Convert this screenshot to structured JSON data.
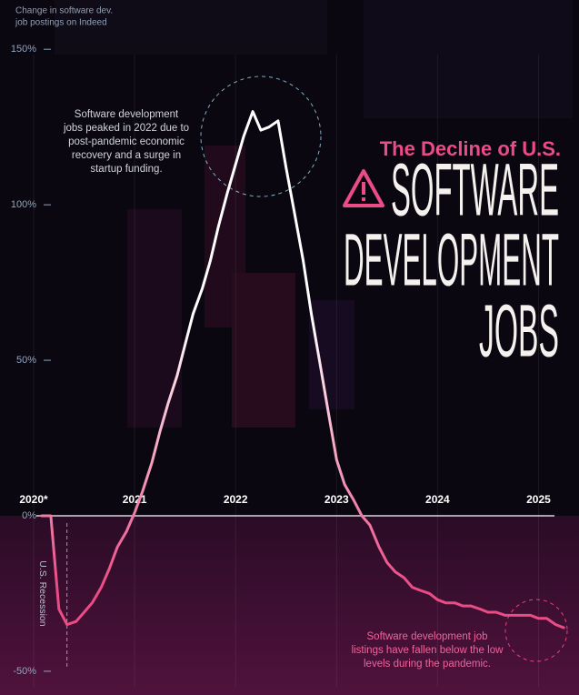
{
  "chart_data": {
    "type": "line",
    "title": "The Decline of U.S.",
    "headline": [
      "SOFTWARE",
      "DEVELOPMENT",
      "JOBS"
    ],
    "y_label": [
      "Change in software dev.",
      "job postings on Indeed"
    ],
    "x": [
      2020.08,
      2020.17,
      2020.25,
      2020.33,
      2020.42,
      2020.5,
      2020.58,
      2020.67,
      2020.75,
      2020.83,
      2020.92,
      2021,
      2021.08,
      2021.17,
      2021.25,
      2021.33,
      2021.42,
      2021.5,
      2021.58,
      2021.67,
      2021.75,
      2021.83,
      2021.92,
      2022,
      2022.08,
      2022.17,
      2022.25,
      2022.33,
      2022.42,
      2022.5,
      2022.58,
      2022.67,
      2022.75,
      2022.83,
      2022.92,
      2023,
      2023.08,
      2023.17,
      2023.25,
      2023.33,
      2023.42,
      2023.5,
      2023.58,
      2023.67,
      2023.75,
      2023.83,
      2023.92,
      2024,
      2024.08,
      2024.17,
      2024.25,
      2024.33,
      2024.42,
      2024.5,
      2024.58,
      2024.67,
      2024.75,
      2024.83,
      2024.92,
      2025,
      2025.08,
      2025.17,
      2025.25
    ],
    "values": [
      0,
      0,
      -30,
      -35,
      -34,
      -31,
      -28,
      -23,
      -17,
      -10,
      -5,
      1,
      8,
      17,
      27,
      36,
      45,
      55,
      65,
      73,
      82,
      93,
      104,
      113,
      122,
      130,
      124,
      125,
      127,
      112,
      98,
      82,
      65,
      50,
      33,
      18,
      10,
      5,
      0,
      -3,
      -10,
      -15,
      -18,
      -20,
      -23,
      -24,
      -25,
      -27,
      -28,
      -28,
      -29,
      -29,
      -30,
      -31,
      -31,
      -32,
      -32,
      -32,
      -32,
      -33,
      -33,
      -35,
      -36
    ],
    "line_gradient": [
      "#ffffff",
      "#ec4c86"
    ],
    "xlim": [
      2019.9,
      2025.3
    ],
    "xticks": [
      {
        "value": 2020,
        "label": "2020*"
      },
      2021,
      2022,
      2023,
      2024,
      2025
    ],
    "ylim": [
      -55,
      160
    ],
    "yticks": [
      {
        "value": 150,
        "label": "150%"
      },
      {
        "value": 100,
        "label": "100%"
      },
      {
        "value": 50,
        "label": "50%"
      },
      {
        "value": 0,
        "label": "0%"
      },
      {
        "value": -50,
        "label": "-50%"
      }
    ],
    "grid": true,
    "recession": {
      "label": "U.S. Recession",
      "end": 2020.33
    },
    "annotations": [
      {
        "lines": [
          "Software development",
          "jobs peaked in 2022 due to",
          "post-pandemic economic",
          "recovery and a surge in",
          "startup funding."
        ]
      },
      {
        "lines": [
          "Software development job",
          "listings have fallen below the low",
          "levels during the pandemic."
        ]
      }
    ]
  }
}
